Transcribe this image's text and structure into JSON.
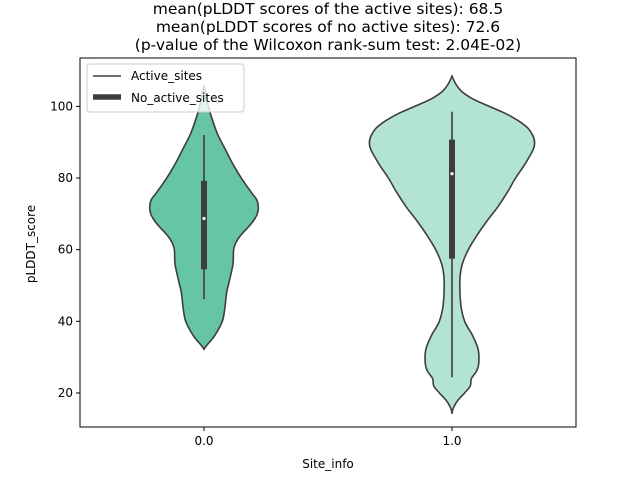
{
  "chart_data": {
    "type": "violin",
    "title_lines": [
      "mean(pLDDT scores of the active sites): 68.5",
      "mean(pLDDT scores of no active sites): 72.6",
      "(p-value of the Wilcoxon rank-sum test: 2.04E-02)"
    ],
    "xlabel": "Site_info",
    "ylabel": "pLDDT_score",
    "ylim": [
      10.5,
      113.5
    ],
    "yticks": [
      20,
      40,
      60,
      80,
      100
    ],
    "categories": [
      "0.0",
      "1.0"
    ],
    "legend": {
      "placement": "top-left",
      "entries": [
        {
          "label": "Active_sites",
          "style": "thin-line"
        },
        {
          "label": "No_active_sites",
          "style": "thick-line"
        }
      ]
    },
    "violins": [
      {
        "category": "0.0",
        "color": "#66c5a6",
        "median": 68.7,
        "q1": 54.5,
        "q3": 79.2,
        "whisker_low": 46.2,
        "whisker_high": 92.0,
        "density": [
          [
            32.3,
            0
          ],
          [
            33.5,
            0.1
          ],
          [
            36.0,
            0.32
          ],
          [
            40.0,
            0.55
          ],
          [
            44.0,
            0.63
          ],
          [
            48.0,
            0.68
          ],
          [
            52.0,
            0.78
          ],
          [
            56.0,
            0.87
          ],
          [
            60.0,
            0.89
          ],
          [
            62.0,
            0.96
          ],
          [
            64.0,
            1.1
          ],
          [
            66.0,
            1.3
          ],
          [
            68.0,
            1.48
          ],
          [
            70.0,
            1.6
          ],
          [
            72.0,
            1.63
          ],
          [
            74.0,
            1.58
          ],
          [
            76.0,
            1.42
          ],
          [
            80.0,
            1.12
          ],
          [
            84.0,
            0.86
          ],
          [
            88.0,
            0.64
          ],
          [
            92.0,
            0.42
          ],
          [
            96.0,
            0.26
          ],
          [
            100.0,
            0.13
          ],
          [
            104.0,
            0.04
          ],
          [
            105.5,
            0
          ]
        ]
      },
      {
        "category": "1.0",
        "color": "#b3e3d5",
        "median": 81.2,
        "q1": 57.5,
        "q3": 90.7,
        "whisker_low": 24.4,
        "whisker_high": 98.5,
        "density": [
          [
            14.5,
            0
          ],
          [
            16.0,
            0.05
          ],
          [
            18.0,
            0.18
          ],
          [
            20.0,
            0.38
          ],
          [
            22.0,
            0.55
          ],
          [
            24.0,
            0.58
          ],
          [
            26.0,
            0.73
          ],
          [
            28.0,
            0.8
          ],
          [
            32.0,
            0.79
          ],
          [
            36.0,
            0.62
          ],
          [
            40.0,
            0.38
          ],
          [
            45.0,
            0.26
          ],
          [
            52.0,
            0.24
          ],
          [
            56.0,
            0.31
          ],
          [
            60.0,
            0.49
          ],
          [
            64.0,
            0.75
          ],
          [
            68.0,
            1.05
          ],
          [
            72.0,
            1.38
          ],
          [
            76.0,
            1.66
          ],
          [
            80.0,
            1.91
          ],
          [
            84.0,
            2.2
          ],
          [
            88.0,
            2.44
          ],
          [
            90.0,
            2.48
          ],
          [
            92.0,
            2.42
          ],
          [
            94.0,
            2.27
          ],
          [
            96.0,
            1.99
          ],
          [
            98.0,
            1.61
          ],
          [
            100.0,
            1.12
          ],
          [
            102.0,
            0.64
          ],
          [
            104.0,
            0.31
          ],
          [
            106.0,
            0.13
          ],
          [
            108.0,
            0.02
          ],
          [
            108.5,
            0
          ]
        ]
      }
    ]
  }
}
